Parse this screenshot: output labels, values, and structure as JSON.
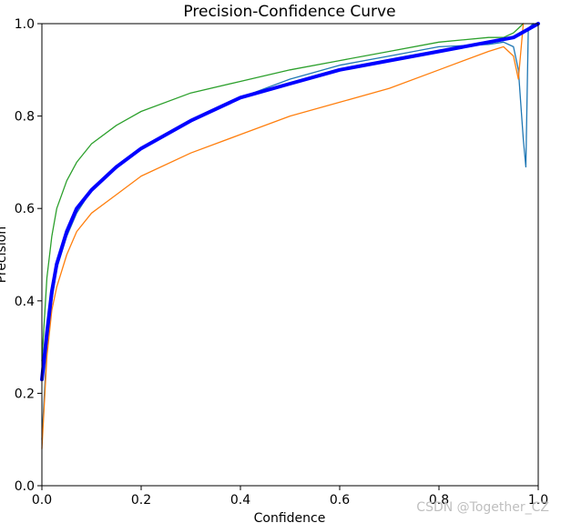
{
  "chart_data": {
    "type": "line",
    "title": "Precision-Confidence Curve",
    "xlabel": "Confidence",
    "ylabel": "Precision",
    "xlim": [
      0,
      1
    ],
    "ylim": [
      0,
      1
    ],
    "x_ticks": [
      "0.0",
      "0.2",
      "0.4",
      "0.6",
      "0.8",
      "1.0"
    ],
    "y_ticks": [
      "0.0",
      "0.2",
      "0.4",
      "0.6",
      "0.8",
      "1.0"
    ],
    "grid": false,
    "legend": "none",
    "series": [
      {
        "color": "#2ca02c",
        "width": 1.3,
        "x": [
          0.0,
          0.01,
          0.02,
          0.03,
          0.05,
          0.07,
          0.1,
          0.15,
          0.2,
          0.3,
          0.4,
          0.5,
          0.6,
          0.7,
          0.8,
          0.9,
          0.93,
          0.95,
          0.96,
          0.97
        ],
        "y": [
          0.27,
          0.45,
          0.54,
          0.6,
          0.66,
          0.7,
          0.74,
          0.78,
          0.81,
          0.85,
          0.875,
          0.9,
          0.92,
          0.94,
          0.96,
          0.97,
          0.97,
          0.98,
          0.99,
          1.0
        ]
      },
      {
        "color": "#1f77b4",
        "width": 1.3,
        "x": [
          0.0,
          0.01,
          0.02,
          0.03,
          0.05,
          0.07,
          0.1,
          0.15,
          0.2,
          0.3,
          0.4,
          0.5,
          0.6,
          0.7,
          0.8,
          0.9,
          0.93,
          0.95,
          0.96,
          0.97,
          0.975,
          0.98,
          0.99
        ],
        "y": [
          0.1,
          0.3,
          0.4,
          0.47,
          0.54,
          0.59,
          0.64,
          0.69,
          0.73,
          0.79,
          0.84,
          0.88,
          0.91,
          0.93,
          0.95,
          0.955,
          0.96,
          0.95,
          0.9,
          0.75,
          0.69,
          0.99,
          1.0
        ]
      },
      {
        "color": "#ff7f0e",
        "width": 1.3,
        "x": [
          0.0,
          0.01,
          0.02,
          0.03,
          0.05,
          0.07,
          0.1,
          0.15,
          0.2,
          0.3,
          0.4,
          0.5,
          0.6,
          0.7,
          0.8,
          0.9,
          0.93,
          0.95,
          0.96,
          0.97
        ],
        "y": [
          0.08,
          0.28,
          0.38,
          0.43,
          0.5,
          0.55,
          0.59,
          0.63,
          0.67,
          0.72,
          0.76,
          0.8,
          0.83,
          0.86,
          0.9,
          0.94,
          0.95,
          0.93,
          0.88,
          1.0
        ]
      },
      {
        "color": "#0000ff",
        "width": 4,
        "x": [
          0.0,
          0.01,
          0.02,
          0.03,
          0.05,
          0.07,
          0.1,
          0.15,
          0.2,
          0.3,
          0.4,
          0.5,
          0.6,
          0.7,
          0.8,
          0.9,
          0.95,
          1.0
        ],
        "y": [
          0.23,
          0.33,
          0.42,
          0.48,
          0.55,
          0.6,
          0.64,
          0.69,
          0.73,
          0.79,
          0.84,
          0.87,
          0.9,
          0.92,
          0.94,
          0.96,
          0.97,
          1.0
        ]
      }
    ]
  },
  "watermark": "CSDN @Together_CZ"
}
